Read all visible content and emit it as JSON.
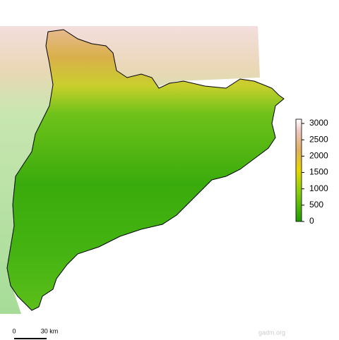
{
  "legend": {
    "lim": [
      0,
      3130
    ],
    "ticks": [
      0,
      500,
      1000,
      1500,
      2000,
      2500,
      3000
    ]
  },
  "scale_bar": {
    "start": "0",
    "end": "30 km"
  },
  "credit": "gadm.org"
}
